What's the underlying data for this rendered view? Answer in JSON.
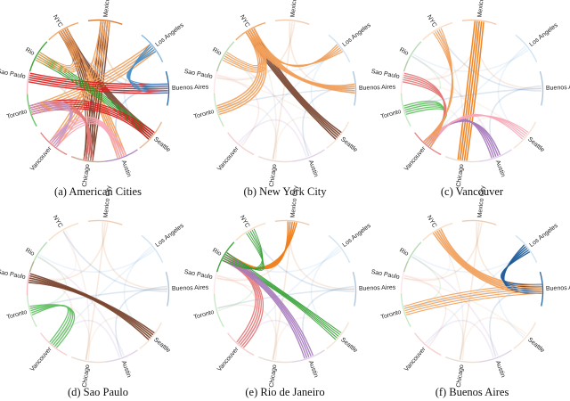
{
  "cities": [
    {
      "name": "Mexico City",
      "color": "#d46a1c"
    },
    {
      "name": "Los Angeles",
      "color": "#7bb3e0"
    },
    {
      "name": "Buenos Aires",
      "color": "#1f5c99"
    },
    {
      "name": "Seattle",
      "color": "#e6b28a"
    },
    {
      "name": "Austin",
      "color": "#a77bbd"
    },
    {
      "name": "Chicago",
      "color": "#c6a089"
    },
    {
      "name": "Vancouver",
      "color": "#e37777"
    },
    {
      "name": "Toronto",
      "color": "#5fbf5f"
    },
    {
      "name": "Sao Paulo",
      "color": "#f7b7c0"
    },
    {
      "name": "Rio",
      "color": "#2e9e2e"
    },
    {
      "name": "NYC",
      "color": "#f2a05a"
    }
  ],
  "panels": [
    {
      "caption": "(a) American Cities",
      "focus": null,
      "chords": [
        {
          "from": "NYC",
          "to": "Seattle",
          "color": "#7a4530",
          "w": 2.6
        },
        {
          "from": "NYC",
          "to": "Austin",
          "color": "#f2a05a",
          "w": 2.6
        },
        {
          "from": "NYC",
          "to": "Chicago",
          "color": "#7a4530",
          "w": 2.2
        },
        {
          "from": "Mexico City",
          "to": "Chicago",
          "color": "#7a4530",
          "w": 2.6
        },
        {
          "from": "Mexico City",
          "to": "Vancouver",
          "color": "#f2a05a",
          "w": 2.4
        },
        {
          "from": "Los Angeles",
          "to": "Toronto",
          "color": "#f2a05a",
          "w": 2.4
        },
        {
          "from": "Buenos Aires",
          "to": "Sao Paulo",
          "color": "#d62020",
          "w": 2.6
        },
        {
          "from": "Seattle",
          "to": "Rio",
          "color": "#2e9e2e",
          "w": 1.8
        },
        {
          "from": "Seattle",
          "to": "Toronto",
          "color": "#d62020",
          "w": 2.4
        },
        {
          "from": "Austin",
          "to": "Vancouver",
          "color": "#f7a8b8",
          "w": 2.2
        },
        {
          "from": "Chicago",
          "to": "Toronto",
          "color": "#e37777",
          "w": 2.2
        },
        {
          "from": "Buenos Aires",
          "to": "Los Angeles",
          "color": "#4a90c8",
          "w": 2.2
        },
        {
          "from": "Vancouver",
          "to": "Toronto",
          "color": "#c79acb",
          "w": 2.0
        },
        {
          "from": "NYC",
          "to": "Rio",
          "color": "#f2a05a",
          "w": 2.0
        }
      ]
    },
    {
      "caption": "(b) New York City",
      "focus": "NYC",
      "chords": [
        {
          "from": "NYC",
          "to": "Seattle",
          "color": "#7a4530",
          "w": 2.8
        },
        {
          "from": "NYC",
          "to": "Buenos Aires",
          "color": "#f2a05a",
          "w": 2.8
        },
        {
          "from": "NYC",
          "to": "Toronto",
          "color": "#f2a05a",
          "w": 2.6
        },
        {
          "from": "NYC",
          "to": "Rio",
          "color": "#f2a05a",
          "w": 2.0
        },
        {
          "from": "NYC",
          "to": "Los Angeles",
          "color": "#f2a05a",
          "w": 2.2
        }
      ]
    },
    {
      "caption": "(c) Vancouver",
      "focus": "Vancouver",
      "chords": [
        {
          "from": "Mexico City",
          "to": "Chicago",
          "color": "#ef7d18",
          "w": 2.8
        },
        {
          "from": "Vancouver",
          "to": "Toronto",
          "color": "#5fbf5f",
          "w": 2.4
        },
        {
          "from": "Vancouver",
          "to": "Sao Paulo",
          "color": "#e37777",
          "w": 2.4
        },
        {
          "from": "Vancouver",
          "to": "Austin",
          "color": "#a77bbd",
          "w": 2.6
        },
        {
          "from": "Vancouver",
          "to": "Seattle",
          "color": "#f7a8b8",
          "w": 2.0
        },
        {
          "from": "Vancouver",
          "to": "NYC",
          "color": "#f2a05a",
          "w": 2.0
        }
      ]
    },
    {
      "caption": "(d) Sao Paulo",
      "focus": "Sao Paulo",
      "chords": [
        {
          "from": "Sao Paulo",
          "to": "Seattle",
          "color": "#7a4530",
          "w": 2.8
        },
        {
          "from": "Toronto",
          "to": "Vancouver",
          "color": "#5fbf5f",
          "w": 2.4
        }
      ]
    },
    {
      "caption": "(e) Rio de Janeiro",
      "focus": "Rio",
      "chords": [
        {
          "from": "Rio",
          "to": "Mexico City",
          "color": "#ef7d18",
          "w": 2.6
        },
        {
          "from": "Rio",
          "to": "Seattle",
          "color": "#2e9e2e",
          "w": 1.8
        },
        {
          "from": "Rio",
          "to": "Vancouver",
          "color": "#e37777",
          "w": 2.4
        },
        {
          "from": "Rio",
          "to": "Austin",
          "color": "#a77bbd",
          "w": 2.4
        },
        {
          "from": "Rio",
          "to": "NYC",
          "color": "#2e9e2e",
          "w": 1.6
        }
      ]
    },
    {
      "caption": "(f) Buenos Aires",
      "focus": "Buenos Aires",
      "chords": [
        {
          "from": "Buenos Aires",
          "to": "NYC",
          "color": "#f2a05a",
          "w": 2.8
        },
        {
          "from": "Buenos Aires",
          "to": "Los Angeles",
          "color": "#1f5c99",
          "w": 2.6
        },
        {
          "from": "Buenos Aires",
          "to": "Toronto",
          "color": "#f2a05a",
          "w": 2.0
        }
      ]
    }
  ]
}
